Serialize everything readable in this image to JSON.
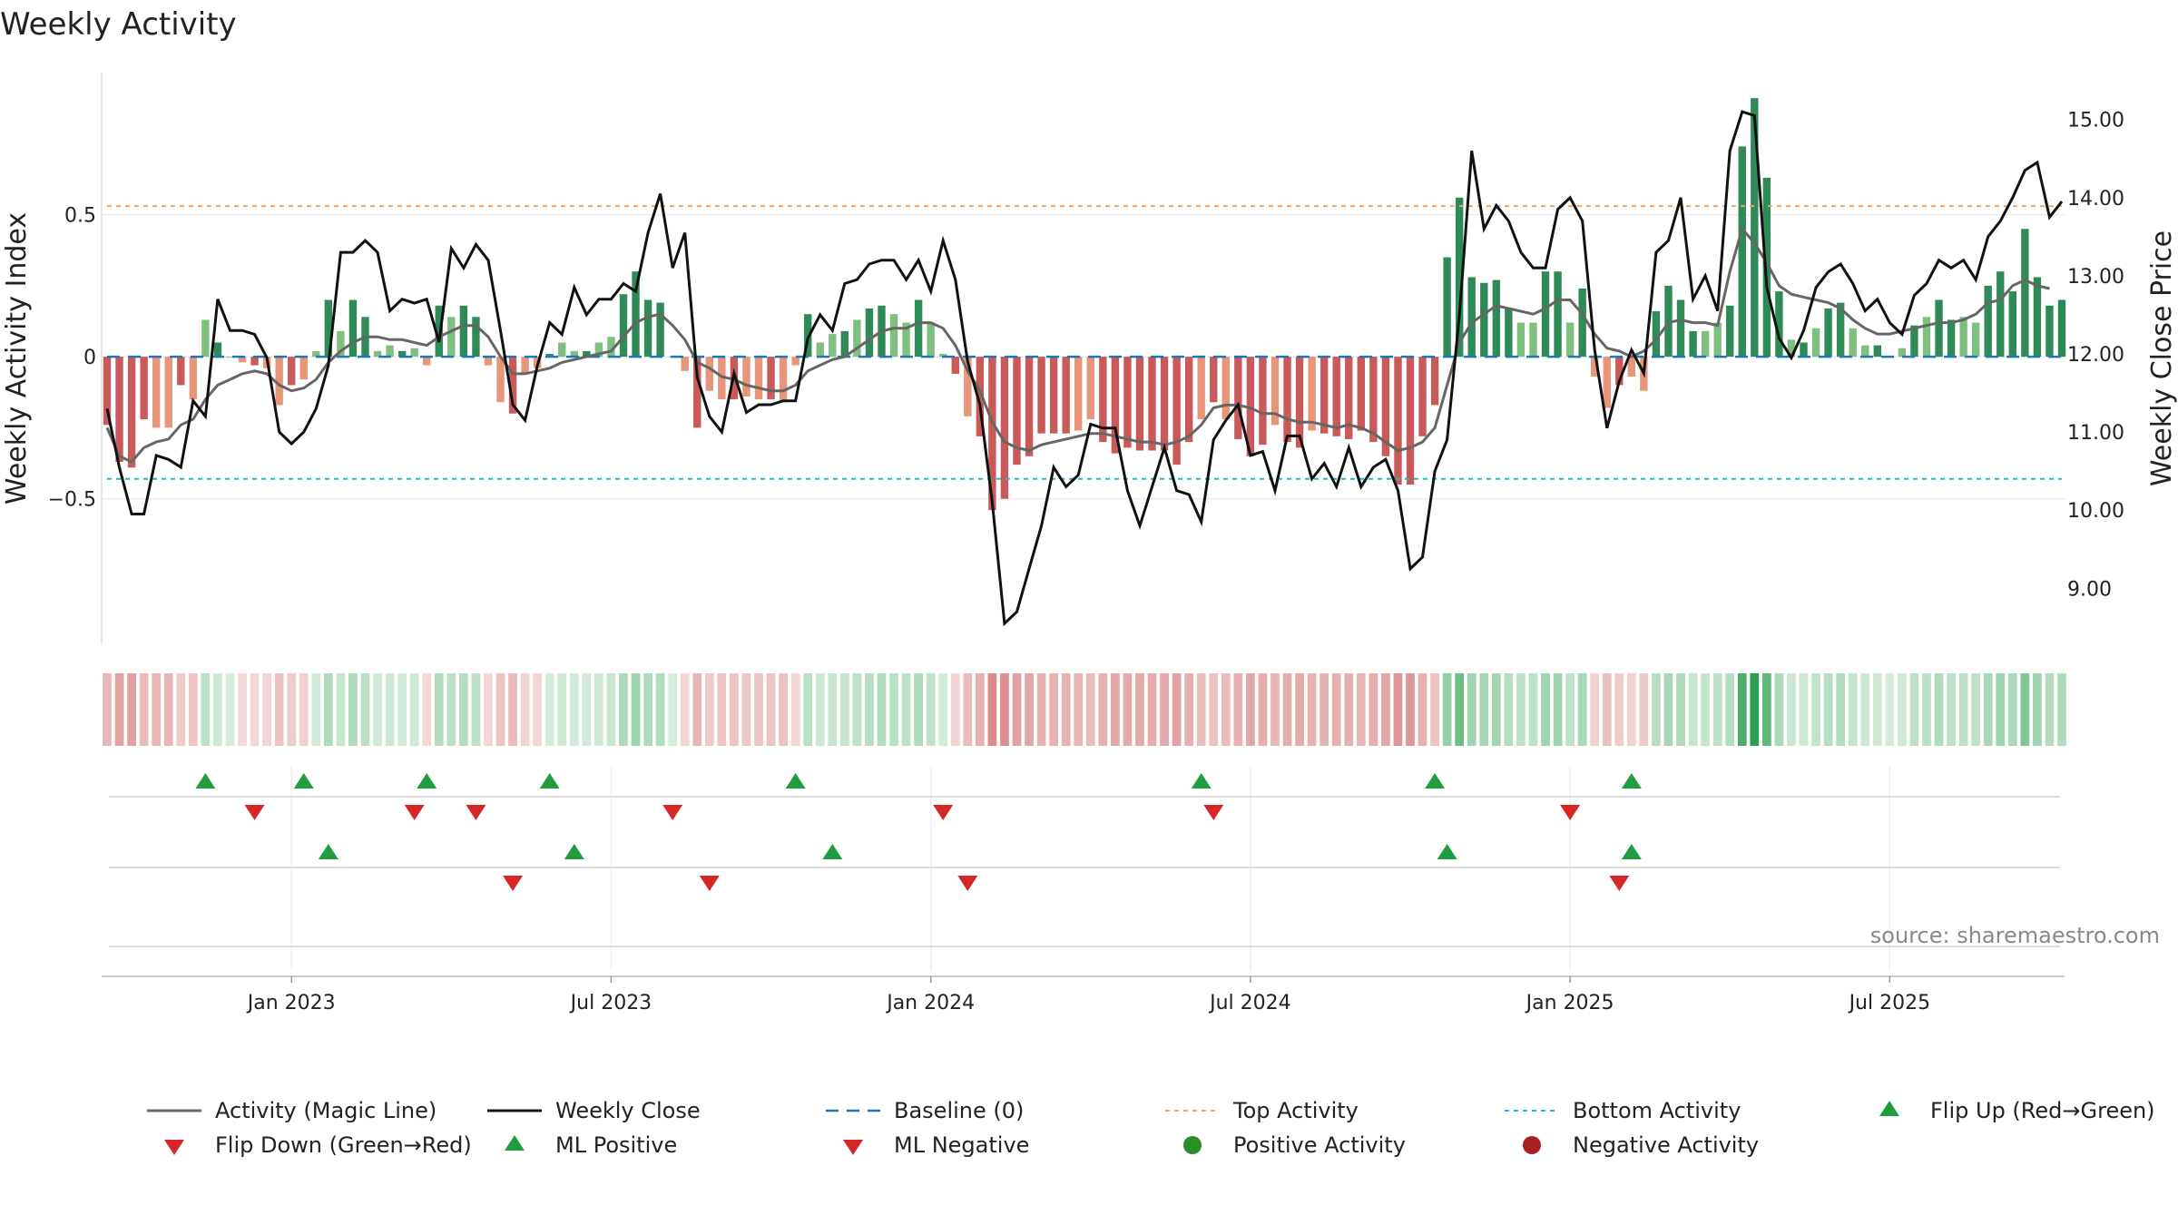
{
  "chart_data": {
    "type": "bar",
    "title": "Weekly Activity",
    "ylabel": "Weekly Activity Index",
    "y2label": "Weekly Close Price",
    "ylim": [
      -0.98,
      1.0
    ],
    "y2lim": [
      8.4,
      15.6
    ],
    "yticks": [
      {
        "v": 0.5,
        "label": "0.5"
      },
      {
        "v": 0,
        "label": "0"
      },
      {
        "v": -0.5,
        "label": "−0.5"
      }
    ],
    "y2ticks": [
      {
        "v": 15,
        "label": "15.00"
      },
      {
        "v": 14,
        "label": "14.00"
      },
      {
        "v": 13,
        "label": "13.00"
      },
      {
        "v": 12,
        "label": "12.00"
      },
      {
        "v": 11,
        "label": "11.00"
      },
      {
        "v": 10,
        "label": "10.00"
      },
      {
        "v": 9,
        "label": "9.00"
      }
    ],
    "xticks": [
      {
        "i": 15,
        "label": "Jan 2023"
      },
      {
        "i": 41,
        "label": "Jul 2023"
      },
      {
        "i": 67,
        "label": "Jan 2024"
      },
      {
        "i": 93,
        "label": "Jul 2024"
      },
      {
        "i": 119,
        "label": "Jan 2025"
      },
      {
        "i": 145,
        "label": "Jul 2025"
      }
    ],
    "top_activity": 0.53,
    "bottom_activity": -0.43,
    "baseline": 0,
    "activity": [
      -0.24,
      -0.37,
      -0.39,
      -0.22,
      -0.25,
      -0.25,
      -0.1,
      -0.15,
      0.13,
      0.05,
      0.0,
      -0.02,
      -0.03,
      -0.04,
      -0.17,
      -0.1,
      -0.08,
      0.02,
      0.2,
      0.09,
      0.2,
      0.14,
      0.02,
      0.04,
      0.02,
      0.03,
      -0.03,
      0.18,
      0.14,
      0.18,
      0.14,
      -0.03,
      -0.16,
      -0.2,
      -0.06,
      -0.04,
      0.01,
      0.05,
      0.02,
      0.02,
      0.05,
      0.07,
      0.22,
      0.3,
      0.2,
      0.19,
      0.0,
      -0.05,
      -0.25,
      -0.12,
      -0.15,
      -0.15,
      -0.14,
      -0.15,
      -0.15,
      -0.16,
      -0.03,
      0.15,
      0.05,
      0.08,
      0.09,
      0.13,
      0.17,
      0.18,
      0.15,
      0.12,
      0.2,
      0.12,
      0.01,
      -0.06,
      -0.21,
      -0.28,
      -0.54,
      -0.5,
      -0.38,
      -0.35,
      -0.27,
      -0.27,
      -0.27,
      -0.26,
      -0.22,
      -0.3,
      -0.34,
      -0.32,
      -0.33,
      -0.33,
      -0.33,
      -0.38,
      -0.3,
      -0.22,
      -0.16,
      -0.22,
      -0.29,
      -0.35,
      -0.31,
      -0.24,
      -0.3,
      -0.32,
      -0.26,
      -0.27,
      -0.28,
      -0.29,
      -0.26,
      -0.3,
      -0.35,
      -0.45,
      -0.45,
      -0.28,
      -0.17,
      0.35,
      0.56,
      0.28,
      0.26,
      0.27,
      0.17,
      0.12,
      0.12,
      0.3,
      0.3,
      0.12,
      0.24,
      -0.07,
      -0.18,
      -0.1,
      -0.07,
      -0.12,
      0.16,
      0.25,
      0.2,
      0.09,
      0.09,
      0.12,
      0.18,
      0.74,
      0.91,
      0.63,
      0.23,
      0.06,
      0.05,
      0.1,
      0.17,
      0.19,
      0.1,
      0.04,
      0.04,
      0.0,
      0.03,
      0.11,
      0.14,
      0.2,
      0.13,
      0.14,
      0.12,
      0.25,
      0.3,
      0.23,
      0.45,
      0.28,
      0.18,
      0.2
    ],
    "magic_line": [
      -0.25,
      -0.35,
      -0.37,
      -0.32,
      -0.3,
      -0.29,
      -0.24,
      -0.22,
      -0.15,
      -0.1,
      -0.08,
      -0.06,
      -0.05,
      -0.06,
      -0.1,
      -0.12,
      -0.11,
      -0.08,
      -0.02,
      0.02,
      0.05,
      0.07,
      0.07,
      0.06,
      0.06,
      0.05,
      0.04,
      0.07,
      0.09,
      0.11,
      0.11,
      0.07,
      0.0,
      -0.06,
      -0.06,
      -0.05,
      -0.04,
      -0.02,
      -0.01,
      0.0,
      0.01,
      0.02,
      0.07,
      0.12,
      0.14,
      0.15,
      0.11,
      0.06,
      -0.02,
      -0.04,
      -0.07,
      -0.08,
      -0.1,
      -0.11,
      -0.12,
      -0.12,
      -0.1,
      -0.05,
      -0.03,
      -0.01,
      0.0,
      0.03,
      0.06,
      0.09,
      0.1,
      0.1,
      0.12,
      0.12,
      0.1,
      0.04,
      -0.05,
      -0.12,
      -0.23,
      -0.3,
      -0.32,
      -0.33,
      -0.31,
      -0.3,
      -0.29,
      -0.28,
      -0.27,
      -0.27,
      -0.28,
      -0.29,
      -0.3,
      -0.3,
      -0.31,
      -0.3,
      -0.28,
      -0.24,
      -0.18,
      -0.17,
      -0.17,
      -0.18,
      -0.2,
      -0.2,
      -0.22,
      -0.23,
      -0.23,
      -0.24,
      -0.25,
      -0.24,
      -0.25,
      -0.27,
      -0.3,
      -0.33,
      -0.32,
      -0.3,
      -0.25,
      -0.1,
      0.05,
      0.12,
      0.15,
      0.18,
      0.17,
      0.16,
      0.15,
      0.17,
      0.2,
      0.2,
      0.15,
      0.08,
      0.03,
      0.02,
      0.0,
      0.02,
      0.06,
      0.12,
      0.13,
      0.12,
      0.12,
      0.11,
      0.3,
      0.45,
      0.4,
      0.33,
      0.25,
      0.22,
      0.21,
      0.2,
      0.19,
      0.17,
      0.13,
      0.1,
      0.08,
      0.08,
      0.09,
      0.1,
      0.11,
      0.12,
      0.12,
      0.13,
      0.15,
      0.19,
      0.2,
      0.25,
      0.27,
      0.25,
      0.24
    ],
    "weekly_close": [
      11.3,
      10.55,
      9.95,
      9.95,
      10.7,
      10.65,
      10.55,
      11.4,
      11.2,
      12.7,
      12.3,
      12.3,
      12.25,
      11.95,
      11.0,
      10.85,
      11.0,
      11.3,
      11.85,
      13.3,
      13.3,
      13.45,
      13.3,
      12.55,
      12.7,
      12.65,
      12.7,
      12.15,
      13.35,
      13.1,
      13.4,
      13.2,
      12.3,
      11.35,
      11.15,
      11.85,
      12.4,
      12.25,
      12.85,
      12.5,
      12.7,
      12.7,
      12.9,
      12.8,
      13.55,
      14.05,
      13.1,
      13.55,
      11.7,
      11.2,
      11.0,
      11.75,
      11.25,
      11.35,
      11.35,
      11.4,
      11.4,
      12.2,
      12.5,
      12.3,
      12.9,
      12.95,
      13.15,
      13.2,
      13.2,
      12.95,
      13.2,
      12.8,
      13.45,
      12.95,
      11.9,
      11.35,
      10.1,
      8.55,
      8.7,
      9.25,
      9.8,
      10.55,
      10.3,
      10.45,
      11.1,
      11.05,
      11.05,
      10.25,
      9.8,
      10.3,
      10.8,
      10.25,
      10.2,
      9.85,
      10.9,
      11.15,
      11.35,
      10.7,
      10.75,
      10.25,
      10.95,
      10.95,
      10.4,
      10.6,
      10.3,
      10.8,
      10.3,
      10.55,
      10.65,
      10.25,
      9.25,
      9.4,
      10.5,
      10.9,
      12.5,
      14.6,
      13.6,
      13.9,
      13.7,
      13.3,
      13.1,
      13.1,
      13.85,
      14.0,
      13.7,
      12.05,
      11.05,
      11.65,
      12.05,
      11.75,
      13.3,
      13.45,
      14.0,
      12.7,
      13.0,
      12.55,
      14.6,
      15.1,
      15.05,
      12.85,
      12.2,
      11.95,
      12.3,
      12.85,
      13.05,
      13.15,
      12.9,
      12.55,
      12.7,
      12.4,
      12.25,
      12.75,
      12.9,
      13.2,
      13.1,
      13.2,
      12.95,
      13.5,
      13.7,
      14.0,
      14.35,
      14.45,
      13.75,
      13.95
    ],
    "flip_up": [
      8,
      16,
      26,
      36,
      56,
      89,
      108,
      124
    ],
    "flip_down": [
      12,
      25,
      30,
      46,
      68,
      90,
      119
    ],
    "ml_positive": [
      18,
      38,
      59,
      109,
      124
    ],
    "ml_negative": [
      33,
      49,
      70,
      123
    ],
    "colors": {
      "strong_green": "#2e8b57",
      "light_green": "#7fbf7f",
      "strong_red": "#c85a5a",
      "light_red": "#e8967a",
      "magic_line": "#666666",
      "close": "#111111",
      "baseline": "#1f77b4",
      "top": "#f5a461",
      "bottom": "#17becf",
      "marker_green": "#1f9d3f",
      "marker_red": "#d62728"
    },
    "legend": [
      {
        "key": "magic",
        "label": "Activity (Magic Line)"
      },
      {
        "key": "close",
        "label": "Weekly Close"
      },
      {
        "key": "baseline",
        "label": "Baseline (0)"
      },
      {
        "key": "top",
        "label": "Top Activity"
      },
      {
        "key": "bottom",
        "label": "Bottom Activity"
      },
      {
        "key": "flipup",
        "label": "Flip Up (Red→Green)"
      },
      {
        "key": "flipdown",
        "label": "Flip Down (Green→Red)"
      },
      {
        "key": "mlpos",
        "label": "ML Positive"
      },
      {
        "key": "mlneg",
        "label": "ML Negative"
      },
      {
        "key": "posact",
        "label": "Positive Activity"
      },
      {
        "key": "negact",
        "label": "Negative Activity"
      }
    ],
    "source": "source: sharemaestro.com"
  }
}
